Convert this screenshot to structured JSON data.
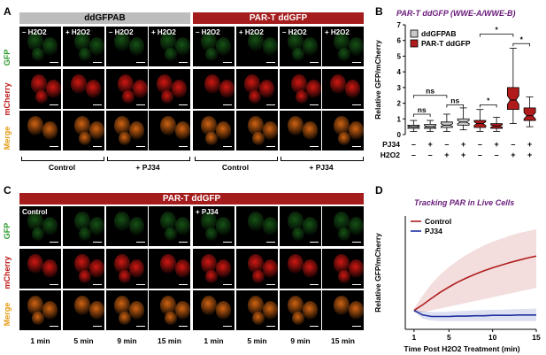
{
  "panels": {
    "A": {
      "letter": "A",
      "headers": [
        "ddGFPAB",
        "PAR-T ddGFP"
      ],
      "columns": [
        "– H2O2",
        "+ H2O2",
        "– H2O2",
        "+ H2O2",
        "– H2O2",
        "+ H2O2",
        "– H2O2",
        "+ H2O2"
      ],
      "rows": [
        "GFP",
        "mCherry",
        "Merge"
      ],
      "groups": [
        "Control",
        "+ PJ34",
        "Control",
        "+ PJ34"
      ]
    },
    "B": {
      "letter": "B",
      "title": "PAR-T ddGFP (WWE-A/WWE-B)",
      "legend": [
        "ddGFPAB",
        "PAR-T ddGFP"
      ],
      "ylabel": "Relative GFP/mCherry",
      "row_labels": [
        "PJ34",
        "H2O2"
      ],
      "pj34": [
        "–",
        "+",
        "–",
        "+",
        "–",
        "+",
        "–",
        "+"
      ],
      "h2o2": [
        "–",
        "–",
        "+",
        "+",
        "–",
        "–",
        "+",
        "+"
      ],
      "sig": [
        "ns",
        "ns",
        "ns",
        "*",
        "*",
        "*"
      ]
    },
    "C": {
      "letter": "C",
      "header": "PAR-T ddGFP",
      "rows": [
        "GFP",
        "mCherry",
        "Merge"
      ],
      "conditions": [
        "Control",
        "+ PJ34"
      ],
      "times": [
        "1 min",
        "5 min",
        "9 min",
        "15 min",
        "1 min",
        "5 min",
        "9 min",
        "15 min"
      ]
    },
    "D": {
      "letter": "D",
      "title": "Tracking PAR in Live Cells",
      "ylabel": "Relative GFP/mCherry",
      "xlabel": "Time Post H2O2 Treatment (min)",
      "legend": [
        "Control",
        "PJ34"
      ]
    }
  },
  "chart_data": [
    {
      "type": "box",
      "title": "PAR-T ddGFP (WWE-A/WWE-B)",
      "ylabel": "Relative GFP/mCherry",
      "ylim": [
        0,
        7
      ],
      "yticks": [
        0,
        1,
        2,
        3,
        4,
        5,
        6,
        7
      ],
      "groups": [
        {
          "name": "ddGFPAB",
          "pj34": "–",
          "h2o2": "–",
          "min": 0.2,
          "q1": 0.4,
          "median": 0.5,
          "q3": 0.6,
          "max": 0.9
        },
        {
          "name": "ddGFPAB",
          "pj34": "+",
          "h2o2": "–",
          "min": 0.2,
          "q1": 0.4,
          "median": 0.5,
          "q3": 0.65,
          "max": 0.9
        },
        {
          "name": "ddGFPAB",
          "pj34": "–",
          "h2o2": "+",
          "min": 0.2,
          "q1": 0.45,
          "median": 0.6,
          "q3": 0.8,
          "max": 1.3
        },
        {
          "name": "ddGFPAB",
          "pj34": "+",
          "h2o2": "+",
          "min": 0.3,
          "q1": 0.6,
          "median": 0.8,
          "q3": 1.0,
          "max": 1.7
        },
        {
          "name": "PAR-T ddGFP",
          "pj34": "–",
          "h2o2": "–",
          "min": 0.2,
          "q1": 0.45,
          "median": 0.7,
          "q3": 0.9,
          "max": 1.6
        },
        {
          "name": "PAR-T ddGFP",
          "pj34": "+",
          "h2o2": "–",
          "min": 0.2,
          "q1": 0.4,
          "median": 0.55,
          "q3": 0.7,
          "max": 1.1
        },
        {
          "name": "PAR-T ddGFP",
          "pj34": "–",
          "h2o2": "+",
          "min": 0.7,
          "q1": 1.6,
          "median": 2.2,
          "q3": 3.0,
          "max": 5.5
        },
        {
          "name": "PAR-T ddGFP",
          "pj34": "+",
          "h2o2": "+",
          "min": 0.5,
          "q1": 0.9,
          "median": 1.2,
          "q3": 1.7,
          "max": 2.4
        }
      ],
      "legend": [
        "ddGFPAB",
        "PAR-T ddGFP"
      ],
      "colors": {
        "ddGFPAB": "#c8c8c8",
        "PAR-T ddGFP": "#b01c1c"
      }
    },
    {
      "type": "line",
      "title": "Tracking PAR in Live Cells",
      "xlabel": "Time Post H2O2 Treatment (min)",
      "ylabel": "Relative GFP/mCherry",
      "xlim": [
        0,
        15
      ],
      "ylim": [
        0.5,
        3.5
      ],
      "xticks": [
        1,
        5,
        10,
        15
      ],
      "series": [
        {
          "name": "Control",
          "color": "#b01c1c",
          "x": [
            1,
            2,
            3,
            4,
            5,
            6,
            7,
            8,
            9,
            10,
            11,
            12,
            13,
            14,
            15
          ],
          "y": [
            1.0,
            1.15,
            1.32,
            1.48,
            1.62,
            1.75,
            1.86,
            1.96,
            2.05,
            2.13,
            2.2,
            2.27,
            2.33,
            2.39,
            2.44
          ],
          "band_hi": [
            1.05,
            1.4,
            1.7,
            1.95,
            2.15,
            2.32,
            2.47,
            2.6,
            2.72,
            2.82,
            2.9,
            2.98,
            3.05,
            3.1,
            3.15
          ],
          "band_lo": [
            0.95,
            0.95,
            1.0,
            1.05,
            1.1,
            1.15,
            1.2,
            1.25,
            1.3,
            1.35,
            1.4,
            1.45,
            1.5,
            1.55,
            1.6
          ]
        },
        {
          "name": "PJ34",
          "color": "#1c2fa0",
          "x": [
            1,
            2,
            3,
            4,
            5,
            6,
            7,
            8,
            9,
            10,
            11,
            12,
            13,
            14,
            15
          ],
          "y": [
            1.0,
            0.88,
            0.84,
            0.84,
            0.84,
            0.85,
            0.85,
            0.86,
            0.86,
            0.87,
            0.87,
            0.87,
            0.88,
            0.88,
            0.88
          ],
          "band_hi": [
            1.02,
            0.98,
            0.96,
            0.96,
            0.97,
            0.98,
            0.99,
            1.0,
            1.01,
            1.02,
            1.02,
            1.03,
            1.04,
            1.04,
            1.05
          ],
          "band_lo": [
            0.98,
            0.78,
            0.73,
            0.72,
            0.72,
            0.72,
            0.72,
            0.72,
            0.72,
            0.72,
            0.72,
            0.72,
            0.72,
            0.72,
            0.72
          ]
        }
      ]
    }
  ],
  "colors": {
    "gfp_label": "#2e9a2e",
    "mcherry_label": "#c01818",
    "merge_label": "#e69a12",
    "accent_red": "#a51c1c"
  }
}
